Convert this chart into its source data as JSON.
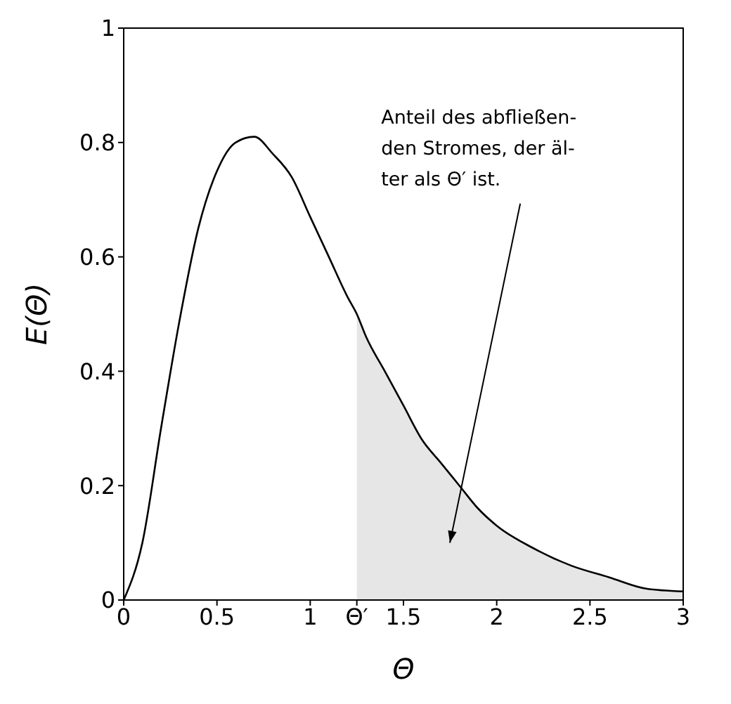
{
  "chart_data": {
    "type": "line",
    "xlabel": "Θ",
    "ylabel": "E(Θ)",
    "xlim": [
      0,
      3
    ],
    "ylim": [
      0,
      1
    ],
    "xticks": [
      0,
      0.5,
      1,
      {
        "value": 1.25,
        "label": "Θ′"
      },
      1.5,
      2,
      2.5,
      3
    ],
    "yticks": [
      0,
      0.2,
      0.4,
      0.6,
      0.8,
      1
    ],
    "marker": "none",
    "grid": false,
    "series": [
      {
        "type": "area",
        "color": "#e6e6e6",
        "x": [
          1.25,
          1.3,
          1.4,
          1.5,
          1.6,
          1.7,
          1.8,
          1.9,
          2.0,
          2.2,
          2.4,
          2.6,
          2.8,
          3.0
        ],
        "values": [
          0.5,
          0.46,
          0.4,
          0.34,
          0.28,
          0.24,
          0.2,
          0.16,
          0.13,
          0.09,
          0.06,
          0.04,
          0.02,
          0.015
        ]
      },
      {
        "color": "#000000",
        "x": [
          0,
          0.1,
          0.2,
          0.3,
          0.4,
          0.5,
          0.6,
          0.7,
          0.8,
          0.9,
          1.0,
          1.1,
          1.2,
          1.25,
          1.3,
          1.4,
          1.5,
          1.6,
          1.7,
          1.8,
          1.9,
          2.0,
          2.2,
          2.4,
          2.6,
          2.8,
          3.0
        ],
        "values": [
          0,
          0.1,
          0.3,
          0.49,
          0.65,
          0.75,
          0.8,
          0.81,
          0.78,
          0.74,
          0.67,
          0.6,
          0.53,
          0.5,
          0.46,
          0.4,
          0.34,
          0.28,
          0.24,
          0.2,
          0.16,
          0.13,
          0.09,
          0.06,
          0.04,
          0.02,
          0.015
        ]
      }
    ],
    "annotations": [
      "Anteil des abfließen-\nden Stromes, der äl-\nter als Θ′ ist."
    ]
  }
}
